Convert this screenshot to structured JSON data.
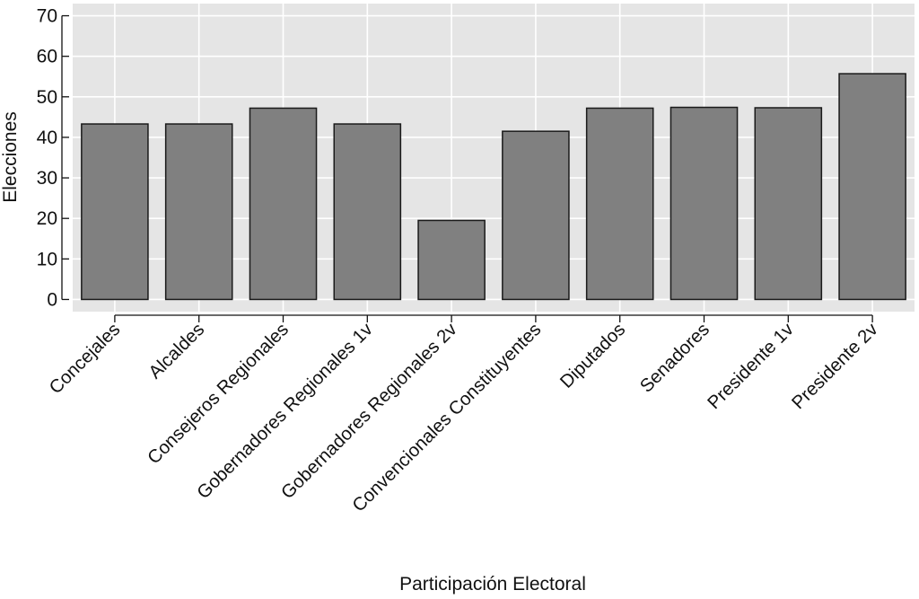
{
  "chart_data": {
    "type": "bar",
    "categories": [
      "Concejales",
      "Alcaldes",
      "Consejeros Regionales",
      "Gobernadores Regionales 1v",
      "Gobernadores Regionales 2v",
      "Convencionales Constituyentes",
      "Diputados",
      "Senadores",
      "Presidente 1v",
      "Presidente 2v"
    ],
    "values": [
      43.3,
      43.3,
      47.2,
      43.3,
      19.5,
      41.5,
      47.2,
      47.4,
      47.3,
      55.7
    ],
    "title": "",
    "xlabel": "Participación Electoral",
    "ylabel": "Elecciones",
    "ylim": [
      -3,
      73
    ],
    "yticks": [
      0,
      10,
      20,
      30,
      40,
      50,
      60,
      70
    ],
    "grid": true,
    "legend": "none",
    "colors": {
      "panel_background": "#e5e5e5",
      "grid": "#ffffff",
      "bar_fill": "#808080",
      "bar_stroke": "#1a1a1a",
      "text": "#111111"
    }
  }
}
